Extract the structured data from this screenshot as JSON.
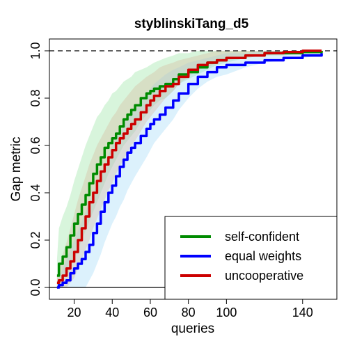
{
  "chart_data": {
    "type": "line",
    "title": "styblinskiTang_d5",
    "xlabel": "queries",
    "ylabel": "Gap metric",
    "xlim": [
      7,
      158
    ],
    "ylim": [
      -0.05,
      1.05
    ],
    "x_ticks": [
      20,
      40,
      60,
      80,
      100,
      140
    ],
    "y_ticks": [
      "0.0",
      "0.2",
      "0.4",
      "0.6",
      "0.8",
      "1.0"
    ],
    "reference_lines": [
      {
        "y": 1.0,
        "style": "dashed",
        "color": "#000000"
      },
      {
        "y": 0.0,
        "style": "solid",
        "color": "#000000"
      }
    ],
    "legend": {
      "position": "bottom-right"
    },
    "series": [
      {
        "name": "self-confident",
        "color": "#008b00",
        "band_color": "#8fe39a",
        "x": [
          11,
          12,
          14,
          16,
          18,
          20,
          22,
          24,
          26,
          28,
          30,
          32,
          34,
          36,
          38,
          40,
          42,
          44,
          46,
          48,
          50,
          52,
          55,
          58,
          60,
          62,
          65,
          68,
          72,
          75,
          80,
          85,
          90,
          95,
          100,
          110,
          120,
          130,
          140,
          150
        ],
        "y": [
          0.05,
          0.1,
          0.13,
          0.17,
          0.22,
          0.27,
          0.31,
          0.35,
          0.39,
          0.44,
          0.48,
          0.52,
          0.55,
          0.59,
          0.61,
          0.63,
          0.65,
          0.68,
          0.71,
          0.73,
          0.75,
          0.77,
          0.8,
          0.82,
          0.83,
          0.84,
          0.85,
          0.86,
          0.88,
          0.9,
          0.91,
          0.93,
          0.95,
          0.96,
          0.97,
          0.98,
          0.99,
          0.99,
          0.995,
          1.0
        ],
        "lower": [
          0.0,
          0.0,
          0.02,
          0.05,
          0.08,
          0.12,
          0.16,
          0.2,
          0.24,
          0.28,
          0.32,
          0.36,
          0.4,
          0.44,
          0.48,
          0.51,
          0.54,
          0.57,
          0.6,
          0.62,
          0.64,
          0.66,
          0.7,
          0.73,
          0.75,
          0.77,
          0.79,
          0.8,
          0.83,
          0.86,
          0.88,
          0.9,
          0.92,
          0.94,
          0.95,
          0.97,
          0.98,
          0.98,
          0.99,
          0.99
        ],
        "upper": [
          0.12,
          0.25,
          0.3,
          0.34,
          0.39,
          0.45,
          0.5,
          0.55,
          0.6,
          0.64,
          0.68,
          0.72,
          0.74,
          0.77,
          0.79,
          0.82,
          0.83,
          0.85,
          0.87,
          0.88,
          0.89,
          0.91,
          0.92,
          0.93,
          0.94,
          0.95,
          0.96,
          0.97,
          0.98,
          0.99,
          0.99,
          1.0,
          1.0,
          1.0,
          1.0,
          1.0,
          1.0,
          1.0,
          1.0,
          1.0
        ]
      },
      {
        "name": "equal weights",
        "color": "#0000ff",
        "band_color": "#9ad8f5",
        "x": [
          11,
          12,
          14,
          16,
          18,
          20,
          22,
          24,
          26,
          28,
          30,
          32,
          34,
          36,
          38,
          40,
          42,
          44,
          46,
          48,
          50,
          52,
          55,
          58,
          60,
          62,
          65,
          68,
          72,
          75,
          80,
          85,
          90,
          95,
          100,
          110,
          120,
          130,
          140,
          150
        ],
        "y": [
          0.0,
          0.01,
          0.02,
          0.03,
          0.06,
          0.08,
          0.1,
          0.12,
          0.15,
          0.18,
          0.23,
          0.27,
          0.32,
          0.36,
          0.4,
          0.43,
          0.47,
          0.51,
          0.54,
          0.57,
          0.59,
          0.61,
          0.64,
          0.67,
          0.69,
          0.71,
          0.73,
          0.76,
          0.79,
          0.82,
          0.86,
          0.89,
          0.91,
          0.93,
          0.94,
          0.95,
          0.96,
          0.97,
          0.98,
          0.99
        ],
        "lower": [
          0.0,
          0.0,
          0.0,
          0.0,
          0.0,
          0.0,
          0.0,
          0.0,
          0.0,
          0.03,
          0.06,
          0.1,
          0.14,
          0.19,
          0.23,
          0.27,
          0.3,
          0.34,
          0.37,
          0.41,
          0.44,
          0.47,
          0.51,
          0.55,
          0.58,
          0.61,
          0.64,
          0.67,
          0.71,
          0.75,
          0.8,
          0.84,
          0.87,
          0.89,
          0.9,
          0.93,
          0.95,
          0.96,
          0.97,
          0.98
        ],
        "upper": [
          0.03,
          0.04,
          0.08,
          0.12,
          0.16,
          0.2,
          0.24,
          0.28,
          0.32,
          0.36,
          0.4,
          0.44,
          0.48,
          0.52,
          0.56,
          0.6,
          0.63,
          0.66,
          0.69,
          0.72,
          0.74,
          0.76,
          0.79,
          0.82,
          0.84,
          0.86,
          0.88,
          0.9,
          0.92,
          0.93,
          0.95,
          0.96,
          0.97,
          0.98,
          0.99,
          0.99,
          1.0,
          1.0,
          1.0,
          1.0
        ]
      },
      {
        "name": "uncooperative",
        "color": "#cc0000",
        "band_color": "#d8b89a",
        "x": [
          11,
          12,
          14,
          16,
          18,
          20,
          22,
          24,
          26,
          28,
          30,
          32,
          34,
          36,
          38,
          40,
          42,
          44,
          46,
          48,
          50,
          52,
          55,
          58,
          60,
          62,
          65,
          68,
          72,
          75,
          80,
          85,
          90,
          95,
          100,
          110,
          120,
          130,
          140,
          150
        ],
        "y": [
          0.02,
          0.03,
          0.05,
          0.08,
          0.11,
          0.15,
          0.2,
          0.25,
          0.3,
          0.36,
          0.4,
          0.45,
          0.49,
          0.52,
          0.55,
          0.58,
          0.61,
          0.63,
          0.65,
          0.67,
          0.69,
          0.71,
          0.74,
          0.77,
          0.79,
          0.81,
          0.83,
          0.85,
          0.86,
          0.89,
          0.92,
          0.94,
          0.95,
          0.96,
          0.97,
          0.98,
          0.99,
          0.995,
          1.0,
          1.0
        ],
        "lower": [
          0.0,
          0.0,
          0.0,
          0.0,
          0.02,
          0.04,
          0.08,
          0.12,
          0.16,
          0.2,
          0.25,
          0.29,
          0.33,
          0.37,
          0.41,
          0.44,
          0.48,
          0.51,
          0.54,
          0.57,
          0.6,
          0.62,
          0.66,
          0.7,
          0.72,
          0.74,
          0.77,
          0.8,
          0.83,
          0.86,
          0.89,
          0.92,
          0.93,
          0.95,
          0.96,
          0.97,
          0.98,
          0.99,
          0.99,
          0.99
        ],
        "upper": [
          0.05,
          0.08,
          0.14,
          0.19,
          0.25,
          0.31,
          0.37,
          0.42,
          0.47,
          0.52,
          0.56,
          0.6,
          0.63,
          0.66,
          0.69,
          0.72,
          0.74,
          0.77,
          0.79,
          0.81,
          0.83,
          0.85,
          0.87,
          0.89,
          0.9,
          0.91,
          0.93,
          0.94,
          0.95,
          0.96,
          0.97,
          0.98,
          0.99,
          1.0,
          1.0,
          1.0,
          1.0,
          1.0,
          1.0,
          1.0
        ]
      }
    ]
  }
}
